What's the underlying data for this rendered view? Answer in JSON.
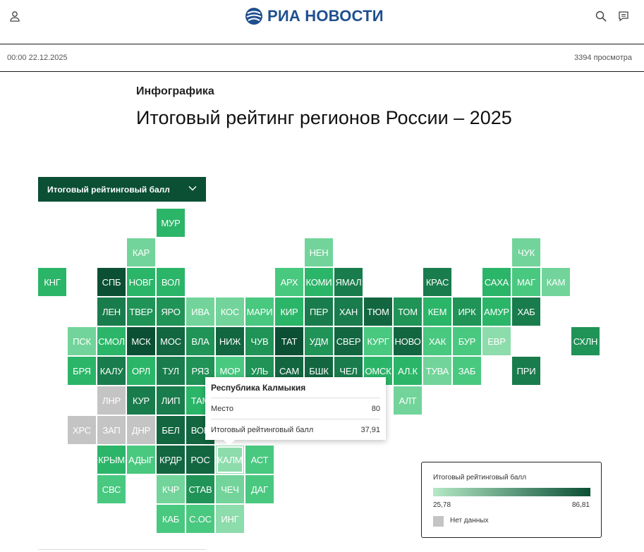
{
  "header": {
    "brand": "РИА НОВОСТИ"
  },
  "meta": {
    "datetime": "00:00 22.12.2025",
    "views": "3394 просмотра"
  },
  "article": {
    "kicker": "Инфографика",
    "title": "Итоговый рейтинг регионов России – 2025"
  },
  "selector": {
    "label": "Итоговый рейтинговый балл"
  },
  "colors": {
    "accent": "#0b4f35",
    "brand": "#1f4f8f",
    "no_data": "#c4c4c4",
    "scale_low": "#b5e8c6",
    "scale_high": "#0b4f35"
  },
  "regions": [
    {
      "code": "МУР",
      "col": 4,
      "row": 0,
      "level": 0.55
    },
    {
      "code": "КАР",
      "col": 3,
      "row": 1,
      "level": 0.25
    },
    {
      "code": "НЕН",
      "col": 9,
      "row": 1,
      "level": 0.25
    },
    {
      "code": "ЧУК",
      "col": 16,
      "row": 1,
      "level": 0.25
    },
    {
      "code": "КНГ",
      "col": 0,
      "row": 2,
      "level": 0.55
    },
    {
      "code": "СПБ",
      "col": 2,
      "row": 2,
      "level": 1.0
    },
    {
      "code": "НОВГ",
      "col": 3,
      "row": 2,
      "level": 0.55
    },
    {
      "code": "ВОЛ",
      "col": 4,
      "row": 2,
      "level": 0.55
    },
    {
      "code": "АРХ",
      "col": 8,
      "row": 2,
      "level": 0.4
    },
    {
      "code": "КОМИ",
      "col": 9,
      "row": 2,
      "level": 0.55
    },
    {
      "code": "ЯМАЛ",
      "col": 10,
      "row": 2,
      "level": 0.8
    },
    {
      "code": "КРАС",
      "col": 13,
      "row": 2,
      "level": 0.8
    },
    {
      "code": "САХА",
      "col": 15,
      "row": 2,
      "level": 0.55
    },
    {
      "code": "МАГ",
      "col": 16,
      "row": 2,
      "level": 0.4
    },
    {
      "code": "КАМ",
      "col": 17,
      "row": 2,
      "level": 0.25
    },
    {
      "code": "ЛЕН",
      "col": 2,
      "row": 3,
      "level": 0.8
    },
    {
      "code": "ТВЕР",
      "col": 3,
      "row": 3,
      "level": 0.7
    },
    {
      "code": "ЯРО",
      "col": 4,
      "row": 3,
      "level": 0.7
    },
    {
      "code": "ИВА",
      "col": 5,
      "row": 3,
      "level": 0.25
    },
    {
      "code": "КОС",
      "col": 6,
      "row": 3,
      "level": 0.25
    },
    {
      "code": "МАРИ",
      "col": 7,
      "row": 3,
      "level": 0.4
    },
    {
      "code": "КИР",
      "col": 8,
      "row": 3,
      "level": 0.55
    },
    {
      "code": "ПЕР",
      "col": 9,
      "row": 3,
      "level": 0.8
    },
    {
      "code": "ХАН",
      "col": 10,
      "row": 3,
      "level": 0.8
    },
    {
      "code": "ТЮМ",
      "col": 11,
      "row": 3,
      "level": 0.9
    },
    {
      "code": "ТОМ",
      "col": 12,
      "row": 3,
      "level": 0.7
    },
    {
      "code": "КЕМ",
      "col": 13,
      "row": 3,
      "level": 0.55
    },
    {
      "code": "ИРК",
      "col": 14,
      "row": 3,
      "level": 0.7
    },
    {
      "code": "АМУР",
      "col": 15,
      "row": 3,
      "level": 0.55
    },
    {
      "code": "ХАБ",
      "col": 16,
      "row": 3,
      "level": 0.8
    },
    {
      "code": "ПСК",
      "col": 1,
      "row": 4,
      "level": 0.25
    },
    {
      "code": "СМОЛ",
      "col": 2,
      "row": 4,
      "level": 0.55
    },
    {
      "code": "МСК",
      "col": 3,
      "row": 4,
      "level": 1.0
    },
    {
      "code": "МОС",
      "col": 4,
      "row": 4,
      "level": 0.9
    },
    {
      "code": "ВЛА",
      "col": 5,
      "row": 4,
      "level": 0.7
    },
    {
      "code": "НИЖ",
      "col": 6,
      "row": 4,
      "level": 0.9
    },
    {
      "code": "ЧУВ",
      "col": 7,
      "row": 4,
      "level": 0.7
    },
    {
      "code": "ТАТ",
      "col": 8,
      "row": 4,
      "level": 1.0
    },
    {
      "code": "УДМ",
      "col": 9,
      "row": 4,
      "level": 0.7
    },
    {
      "code": "СВЕР",
      "col": 10,
      "row": 4,
      "level": 0.9
    },
    {
      "code": "КУРГ",
      "col": 11,
      "row": 4,
      "level": 0.4
    },
    {
      "code": "НОВО",
      "col": 12,
      "row": 4,
      "level": 0.9
    },
    {
      "code": "ХАК",
      "col": 13,
      "row": 4,
      "level": 0.4
    },
    {
      "code": "БУР",
      "col": 14,
      "row": 4,
      "level": 0.4
    },
    {
      "code": "ЕВР",
      "col": 15,
      "row": 4,
      "level": 0.15
    },
    {
      "code": "СХЛН",
      "col": 18,
      "row": 4,
      "level": 0.7
    },
    {
      "code": "БРЯ",
      "col": 1,
      "row": 5,
      "level": 0.55
    },
    {
      "code": "КАЛУ",
      "col": 2,
      "row": 5,
      "level": 0.8
    },
    {
      "code": "ОРЛ",
      "col": 3,
      "row": 5,
      "level": 0.55
    },
    {
      "code": "ТУЛ",
      "col": 4,
      "row": 5,
      "level": 0.8
    },
    {
      "code": "РЯЗ",
      "col": 5,
      "row": 5,
      "level": 0.7
    },
    {
      "code": "МОР",
      "col": 6,
      "row": 5,
      "level": 0.4
    },
    {
      "code": "УЛЬ",
      "col": 7,
      "row": 5,
      "level": 0.7
    },
    {
      "code": "САМ",
      "col": 8,
      "row": 5,
      "level": 0.9
    },
    {
      "code": "БШК",
      "col": 9,
      "row": 5,
      "level": 0.9
    },
    {
      "code": "ЧЕЛ",
      "col": 10,
      "row": 5,
      "level": 0.8
    },
    {
      "code": "ОМСК",
      "col": 11,
      "row": 5,
      "level": 0.55
    },
    {
      "code": "АЛ.К",
      "col": 12,
      "row": 5,
      "level": 0.55
    },
    {
      "code": "ТУВА",
      "col": 13,
      "row": 5,
      "level": 0.25
    },
    {
      "code": "ЗАБ",
      "col": 14,
      "row": 5,
      "level": 0.4
    },
    {
      "code": "ПРИ",
      "col": 16,
      "row": 5,
      "level": 0.8
    },
    {
      "code": "ЛНР",
      "col": 2,
      "row": 6,
      "level": -1
    },
    {
      "code": "КУР",
      "col": 3,
      "row": 6,
      "level": 0.8
    },
    {
      "code": "ЛИП",
      "col": 4,
      "row": 6,
      "level": 0.8
    },
    {
      "code": "ТАМ",
      "col": 5,
      "row": 6,
      "level": 0.55
    },
    {
      "code": "АЛТ",
      "col": 12,
      "row": 6,
      "level": 0.25
    },
    {
      "code": "ХРС",
      "col": 1,
      "row": 7,
      "level": -1
    },
    {
      "code": "ЗАП",
      "col": 2,
      "row": 7,
      "level": -1
    },
    {
      "code": "ДНР",
      "col": 3,
      "row": 7,
      "level": -1
    },
    {
      "code": "БЕЛ",
      "col": 4,
      "row": 7,
      "level": 0.9
    },
    {
      "code": "ВОР",
      "col": 5,
      "row": 7,
      "level": 0.9
    },
    {
      "code": "КРЫМ",
      "col": 2,
      "row": 8,
      "level": 0.55
    },
    {
      "code": "АДЫГ",
      "col": 3,
      "row": 8,
      "level": 0.4
    },
    {
      "code": "КРДР",
      "col": 4,
      "row": 8,
      "level": 0.9
    },
    {
      "code": "РОС",
      "col": 5,
      "row": 8,
      "level": 0.9
    },
    {
      "code": "КАЛМ",
      "col": 6,
      "row": 8,
      "level": 0.15,
      "active": true
    },
    {
      "code": "АСТ",
      "col": 7,
      "row": 8,
      "level": 0.4
    },
    {
      "code": "СВС",
      "col": 2,
      "row": 9,
      "level": 0.4
    },
    {
      "code": "КЧР",
      "col": 4,
      "row": 9,
      "level": 0.25
    },
    {
      "code": "СТАВ",
      "col": 5,
      "row": 9,
      "level": 0.7
    },
    {
      "code": "ЧЕЧ",
      "col": 6,
      "row": 9,
      "level": 0.25
    },
    {
      "code": "ДАГ",
      "col": 7,
      "row": 9,
      "level": 0.4
    },
    {
      "code": "КАБ",
      "col": 4,
      "row": 10,
      "level": 0.4
    },
    {
      "code": "С.ОС",
      "col": 5,
      "row": 10,
      "level": 0.4
    },
    {
      "code": "ИНГ",
      "col": 6,
      "row": 10,
      "level": 0.15
    }
  ],
  "tooltip": {
    "title": "Республика Калмыкия",
    "place_label": "Место",
    "place_value": "80",
    "score_label": "Итоговый рейтинговый балл",
    "score_value": "37,91"
  },
  "legend": {
    "title": "Итоговый рейтинговый балл",
    "min": "25,78",
    "max": "86,81",
    "no_data": "Нет данных"
  }
}
